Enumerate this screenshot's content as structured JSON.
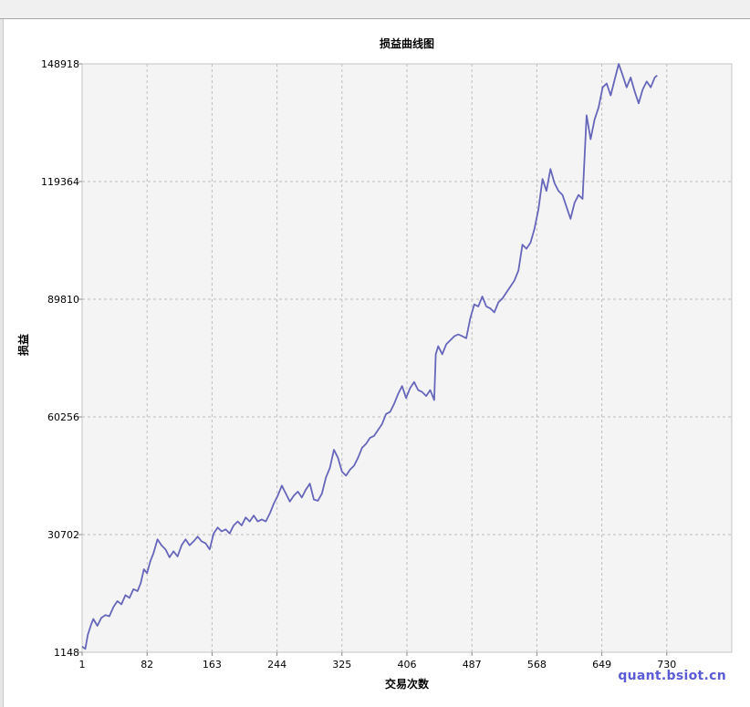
{
  "chart_data": {
    "type": "line",
    "title": "损益曲线图",
    "xlabel": "交易次数",
    "ylabel": "损益",
    "xlim": [
      1,
      811
    ],
    "ylim": [
      1148,
      148918
    ],
    "x_ticks": [
      1,
      82,
      163,
      244,
      325,
      406,
      487,
      568,
      649,
      730
    ],
    "y_ticks": [
      1148,
      30702,
      60256,
      89810,
      119364,
      148918
    ],
    "grid": true,
    "series": [
      {
        "color": "#6666bb",
        "points": [
          [
            1,
            2600
          ],
          [
            5,
            2000
          ],
          [
            8,
            5500
          ],
          [
            12,
            8000
          ],
          [
            15,
            9500
          ],
          [
            20,
            7800
          ],
          [
            25,
            9800
          ],
          [
            30,
            10500
          ],
          [
            35,
            10200
          ],
          [
            40,
            12500
          ],
          [
            45,
            14000
          ],
          [
            50,
            13200
          ],
          [
            55,
            15500
          ],
          [
            60,
            14800
          ],
          [
            65,
            17000
          ],
          [
            70,
            16500
          ],
          [
            74,
            18500
          ],
          [
            78,
            22000
          ],
          [
            82,
            21000
          ],
          [
            86,
            24000
          ],
          [
            90,
            26000
          ],
          [
            95,
            29500
          ],
          [
            100,
            28000
          ],
          [
            105,
            27000
          ],
          [
            110,
            25000
          ],
          [
            115,
            26500
          ],
          [
            120,
            25200
          ],
          [
            125,
            28000
          ],
          [
            130,
            29500
          ],
          [
            135,
            28000
          ],
          [
            140,
            29000
          ],
          [
            145,
            30200
          ],
          [
            150,
            29000
          ],
          [
            155,
            28500
          ],
          [
            160,
            27000
          ],
          [
            165,
            31000
          ],
          [
            170,
            32500
          ],
          [
            175,
            31500
          ],
          [
            180,
            32000
          ],
          [
            185,
            31000
          ],
          [
            190,
            33000
          ],
          [
            195,
            34000
          ],
          [
            200,
            33000
          ],
          [
            205,
            35000
          ],
          [
            210,
            34000
          ],
          [
            215,
            35500
          ],
          [
            220,
            34000
          ],
          [
            225,
            34500
          ],
          [
            230,
            34000
          ],
          [
            235,
            36000
          ],
          [
            240,
            38500
          ],
          [
            245,
            40500
          ],
          [
            250,
            43000
          ],
          [
            255,
            41000
          ],
          [
            260,
            39000
          ],
          [
            265,
            40500
          ],
          [
            270,
            41500
          ],
          [
            275,
            40000
          ],
          [
            280,
            42000
          ],
          [
            285,
            43500
          ],
          [
            290,
            39500
          ],
          [
            295,
            39200
          ],
          [
            300,
            41000
          ],
          [
            305,
            45000
          ],
          [
            310,
            47500
          ],
          [
            315,
            52000
          ],
          [
            320,
            50000
          ],
          [
            325,
            46500
          ],
          [
            330,
            45500
          ],
          [
            335,
            47000
          ],
          [
            340,
            48000
          ],
          [
            345,
            50000
          ],
          [
            350,
            52500
          ],
          [
            355,
            53500
          ],
          [
            360,
            55000
          ],
          [
            365,
            55500
          ],
          [
            370,
            57000
          ],
          [
            375,
            58500
          ],
          [
            380,
            61000
          ],
          [
            385,
            61500
          ],
          [
            390,
            63500
          ],
          [
            395,
            66000
          ],
          [
            400,
            68000
          ],
          [
            405,
            65000
          ],
          [
            410,
            67500
          ],
          [
            415,
            69000
          ],
          [
            420,
            67000
          ],
          [
            425,
            66500
          ],
          [
            430,
            65500
          ],
          [
            435,
            67000
          ],
          [
            440,
            64500
          ],
          [
            442,
            76000
          ],
          [
            445,
            78000
          ],
          [
            450,
            76000
          ],
          [
            455,
            78500
          ],
          [
            460,
            79500
          ],
          [
            465,
            80500
          ],
          [
            470,
            81000
          ],
          [
            475,
            80500
          ],
          [
            480,
            80000
          ],
          [
            485,
            85000
          ],
          [
            490,
            88500
          ],
          [
            495,
            88000
          ],
          [
            500,
            90500
          ],
          [
            505,
            88000
          ],
          [
            510,
            87500
          ],
          [
            515,
            86500
          ],
          [
            520,
            89000
          ],
          [
            525,
            90000
          ],
          [
            530,
            91500
          ],
          [
            535,
            93000
          ],
          [
            540,
            94500
          ],
          [
            545,
            97000
          ],
          [
            550,
            103500
          ],
          [
            555,
            102500
          ],
          [
            560,
            104000
          ],
          [
            565,
            107500
          ],
          [
            570,
            112500
          ],
          [
            575,
            120000
          ],
          [
            580,
            117000
          ],
          [
            585,
            122500
          ],
          [
            590,
            119000
          ],
          [
            595,
            117000
          ],
          [
            600,
            116000
          ],
          [
            605,
            113000
          ],
          [
            610,
            110000
          ],
          [
            615,
            114000
          ],
          [
            620,
            116000
          ],
          [
            625,
            115000
          ],
          [
            630,
            136000
          ],
          [
            635,
            130000
          ],
          [
            640,
            135000
          ],
          [
            645,
            138000
          ],
          [
            650,
            143000
          ],
          [
            655,
            144000
          ],
          [
            660,
            141000
          ],
          [
            665,
            145000
          ],
          [
            670,
            148900
          ],
          [
            675,
            146000
          ],
          [
            680,
            143000
          ],
          [
            685,
            145500
          ],
          [
            690,
            142000
          ],
          [
            695,
            139000
          ],
          [
            700,
            142500
          ],
          [
            705,
            144500
          ],
          [
            710,
            143000
          ],
          [
            715,
            145500
          ],
          [
            718,
            146000
          ]
        ]
      }
    ]
  },
  "watermark": "quant.bsiot.cn"
}
